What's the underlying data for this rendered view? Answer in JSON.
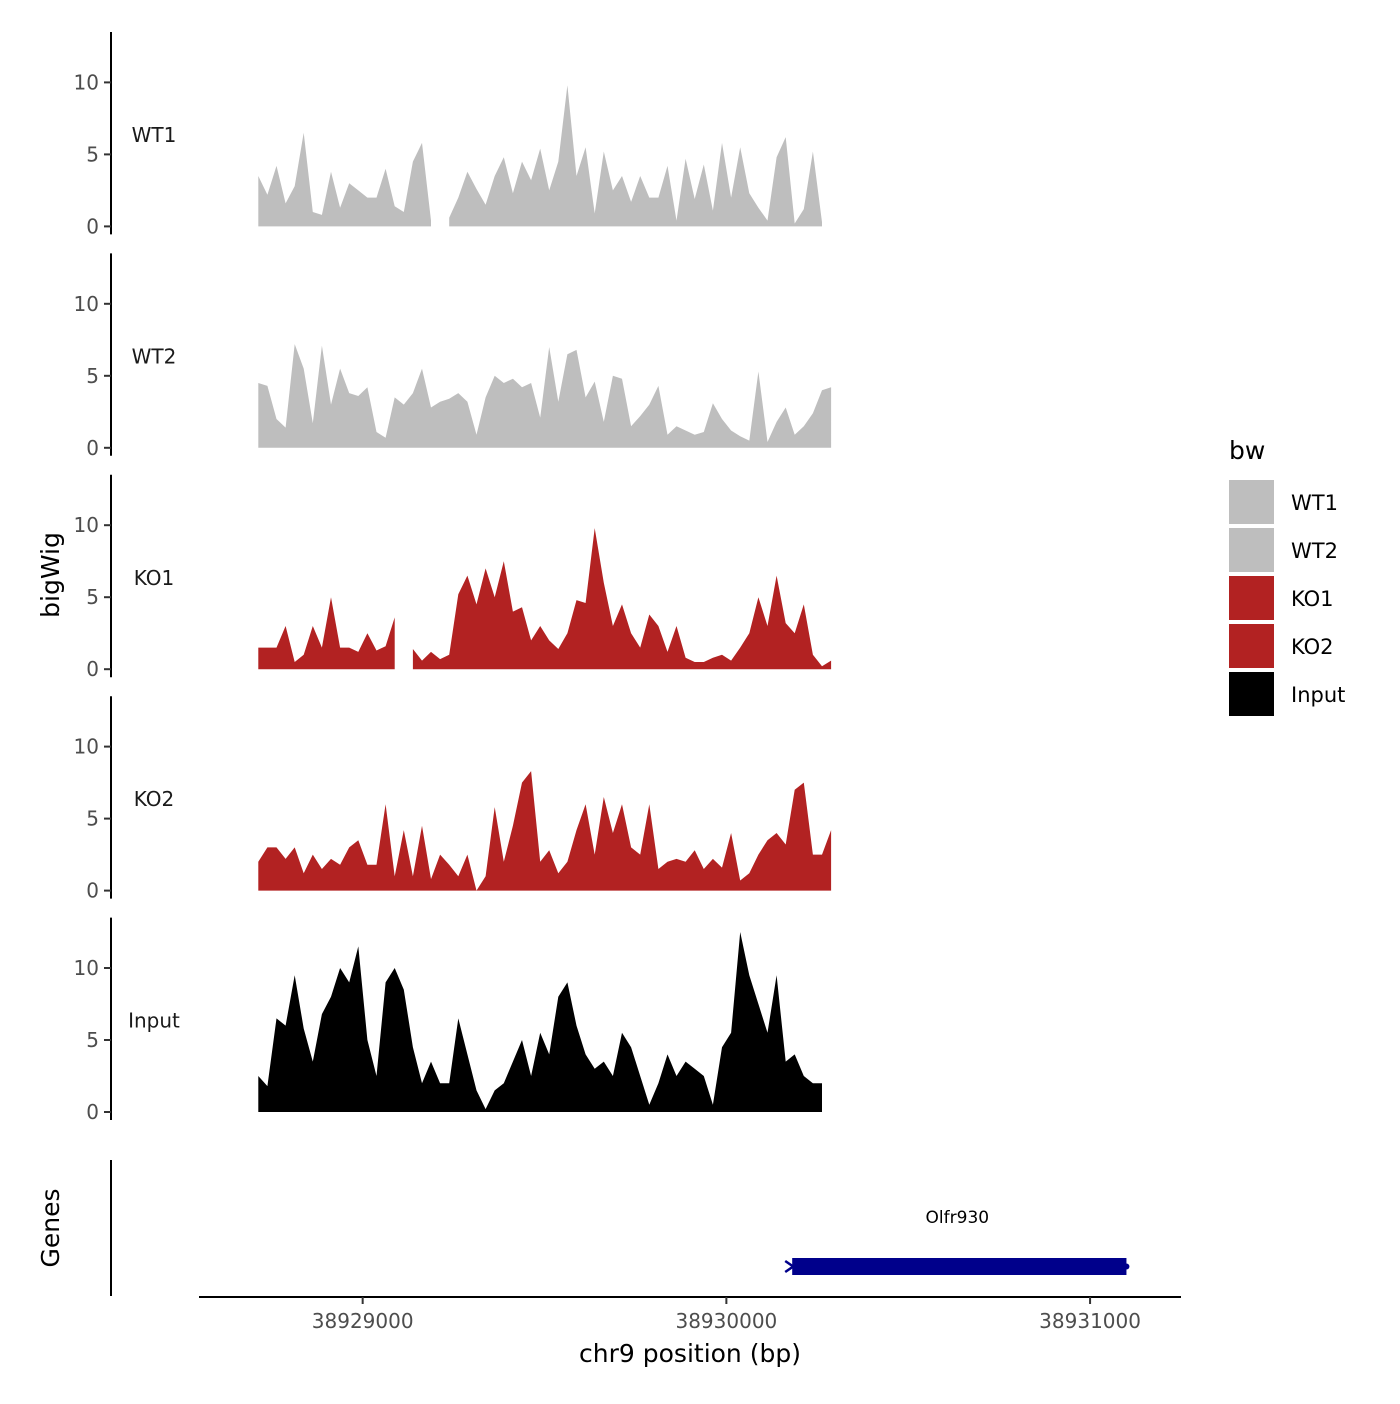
{
  "chart_data": {
    "type": "area",
    "facet_layout": "stacked tracks",
    "ylabel": "bigWig",
    "genes_label": "Genes",
    "xlabel": "chr9 position (bp)",
    "xlim": [
      38928550,
      38931250
    ],
    "x_ticks": [
      38929000,
      38930000,
      38931000
    ],
    "x_tick_labels": [
      "38929000",
      "38930000",
      "38931000"
    ],
    "ylim": [
      0,
      13.5
    ],
    "y_ticks": [
      0,
      5,
      10
    ],
    "y_tick_labels": [
      "0",
      "5",
      "10"
    ],
    "x_start": 38928713,
    "x_step": 25,
    "legend": {
      "title": "bw",
      "position": "right",
      "entries": [
        {
          "label": "WT1",
          "color": "#BEBEBE"
        },
        {
          "label": "WT2",
          "color": "#BEBEBE"
        },
        {
          "label": "KO1",
          "color": "#B22222"
        },
        {
          "label": "KO2",
          "color": "#B22222"
        },
        {
          "label": "Input",
          "color": "#000000"
        }
      ]
    },
    "series": [
      {
        "name": "WT1",
        "color": "#BEBEBE",
        "values": [
          3.5,
          2.2,
          4.2,
          1.6,
          2.8,
          6.5,
          1.0,
          0.8,
          3.8,
          1.3,
          3.0,
          2.5,
          2.0,
          2.0,
          4.0,
          1.4,
          1.0,
          4.5,
          5.8,
          0.4,
          null,
          0.6,
          2.0,
          3.8,
          2.6,
          1.5,
          3.5,
          4.8,
          2.3,
          4.5,
          3.2,
          5.4,
          2.5,
          4.5,
          9.8,
          3.5,
          5.5,
          0.9,
          5.2,
          2.5,
          3.5,
          1.7,
          3.5,
          2.0,
          2.0,
          4.2,
          0.4,
          4.7,
          1.9,
          4.3,
          1.1,
          5.8,
          2.0,
          5.5,
          2.3,
          1.3,
          0.4,
          4.8,
          6.2,
          0.2,
          1.2,
          5.2,
          0.3
        ]
      },
      {
        "name": "WT2",
        "color": "#BEBEBE",
        "values": [
          4.5,
          4.3,
          2.0,
          1.4,
          7.2,
          5.5,
          1.7,
          7.1,
          3.0,
          5.5,
          3.8,
          3.6,
          4.2,
          1.1,
          0.7,
          3.5,
          3.0,
          3.8,
          5.5,
          2.8,
          3.2,
          3.4,
          3.8,
          3.2,
          0.9,
          3.5,
          5.0,
          4.5,
          4.8,
          4.2,
          4.5,
          2.1,
          7.0,
          3.2,
          6.5,
          6.8,
          3.5,
          4.6,
          1.8,
          5.0,
          4.8,
          1.5,
          2.2,
          3.0,
          4.3,
          0.9,
          1.5,
          1.2,
          0.9,
          1.1,
          3.1,
          2.0,
          1.2,
          0.8,
          0.5,
          5.3,
          0.4,
          1.8,
          2.8,
          0.9,
          1.5,
          2.4,
          4.0,
          4.2
        ]
      },
      {
        "name": "KO1",
        "color": "#B22222",
        "values": [
          1.5,
          1.5,
          1.5,
          3.0,
          0.5,
          1.0,
          3.0,
          1.5,
          5.0,
          1.5,
          1.5,
          1.2,
          2.5,
          1.3,
          1.6,
          3.6,
          null,
          1.4,
          0.6,
          1.2,
          0.7,
          1.0,
          5.2,
          6.5,
          4.5,
          7.0,
          5.0,
          7.5,
          4.0,
          4.3,
          2.0,
          3.0,
          2.0,
          1.4,
          2.5,
          4.8,
          4.6,
          9.8,
          6.0,
          3.0,
          4.5,
          2.5,
          1.5,
          3.8,
          3.0,
          1.2,
          3.0,
          0.8,
          0.5,
          0.5,
          0.8,
          1.0,
          0.6,
          1.5,
          2.5,
          5.0,
          3.0,
          6.5,
          3.2,
          2.5,
          4.5,
          1.0,
          0.2,
          0.6
        ]
      },
      {
        "name": "KO2",
        "color": "#B22222",
        "values": [
          2.0,
          3.0,
          3.0,
          2.2,
          3.0,
          1.2,
          2.5,
          1.5,
          2.2,
          1.8,
          3.0,
          3.5,
          1.8,
          1.8,
          6.0,
          1.0,
          4.2,
          1.0,
          4.5,
          0.8,
          2.5,
          1.8,
          1.0,
          2.5,
          0.0,
          1.0,
          5.8,
          2.0,
          4.5,
          7.5,
          8.3,
          2.0,
          2.8,
          1.2,
          2.0,
          4.2,
          6.0,
          2.5,
          6.5,
          4.0,
          6.0,
          3.0,
          2.5,
          6.0,
          1.5,
          2.0,
          2.2,
          2.0,
          2.8,
          1.5,
          2.2,
          1.6,
          4.0,
          0.7,
          1.2,
          2.5,
          3.5,
          4.0,
          3.2,
          7.0,
          7.5,
          2.5,
          2.5,
          4.2
        ]
      },
      {
        "name": "Input",
        "color": "#000000",
        "values": [
          2.5,
          1.8,
          6.5,
          6.0,
          9.5,
          5.8,
          3.5,
          6.8,
          8.0,
          10.0,
          9.0,
          11.5,
          5.0,
          2.5,
          9.0,
          10.0,
          8.5,
          4.5,
          2.0,
          3.5,
          2.0,
          2.0,
          6.5,
          4.0,
          1.5,
          0.2,
          1.5,
          2.0,
          3.5,
          5.0,
          2.5,
          5.5,
          4.0,
          8.0,
          9.0,
          6.0,
          4.0,
          3.0,
          3.5,
          2.5,
          5.5,
          4.5,
          2.5,
          0.5,
          2.0,
          4.0,
          2.5,
          3.5,
          3.0,
          2.5,
          0.5,
          4.5,
          5.5,
          12.5,
          9.5,
          7.5,
          5.5,
          9.5,
          3.5,
          4.0,
          2.5,
          2.0,
          2.0
        ]
      }
    ],
    "genes": [
      {
        "name": "Olfr930",
        "start": 38930170,
        "end": 38931100,
        "strand": "-",
        "color": "#00008B"
      }
    ]
  }
}
